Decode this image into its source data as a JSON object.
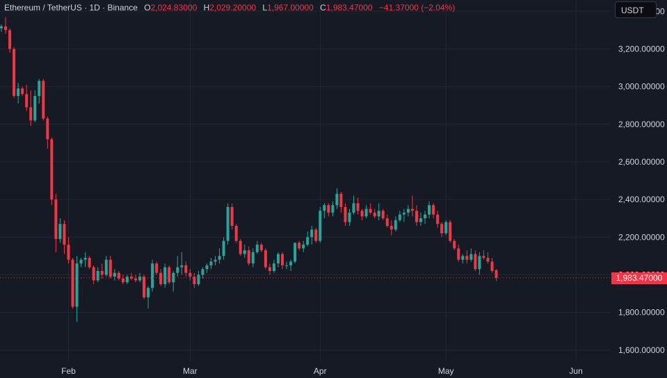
{
  "header": {
    "pair": "Ethereum / TetherUS · 1D · Binance",
    "open_label": "O",
    "open": "2,024.83000",
    "high_label": "H",
    "high": "2,029.20000",
    "low_label": "L",
    "low": "1,967.00000",
    "close_label": "C",
    "close": "1,983.47000",
    "change": "−41.37000 (−2.04%)"
  },
  "currency_button": "USDT",
  "last_price_label": "1,983.47000",
  "colors": {
    "up": "#26a69a",
    "down": "#f23645",
    "background": "#161a25",
    "grid": "#242732",
    "text": "#d1d4dc"
  },
  "chart_data": {
    "type": "candlestick",
    "y_axis": {
      "min": 1540,
      "max": 3460,
      "ticks": [
        1600,
        1800,
        2000,
        2200,
        2400,
        2600,
        2800,
        3000,
        3200,
        3400
      ],
      "tick_labels": [
        "1,600.00000",
        "1,800.00000",
        "2,000.00000",
        "2,200.00000",
        "2,400.00000",
        "2,600.00000",
        "2,800.00000",
        "3,000.00000",
        "3,200.00000",
        "3,400.00000"
      ]
    },
    "x_axis": {
      "labels": [
        {
          "label": "Feb",
          "index": 16
        },
        {
          "label": "Mar",
          "index": 45
        },
        {
          "label": "Apr",
          "index": 76
        },
        {
          "label": "May",
          "index": 106
        },
        {
          "label": "Jun",
          "index": 137
        }
      ]
    },
    "last_price": 1983.47,
    "candles": [
      [
        3310,
        3330,
        3290,
        3320
      ],
      [
        3320,
        3370,
        3280,
        3300
      ],
      [
        3300,
        3310,
        3180,
        3200
      ],
      [
        3200,
        3210,
        2940,
        2950
      ],
      [
        2950,
        3020,
        2910,
        2990
      ],
      [
        2990,
        3000,
        2950,
        2960
      ],
      [
        2960,
        3010,
        2870,
        2890
      ],
      [
        2890,
        2980,
        2790,
        2820
      ],
      [
        2820,
        2980,
        2810,
        2950
      ],
      [
        2950,
        3040,
        2910,
        3030
      ],
      [
        3030,
        3040,
        2820,
        2830
      ],
      [
        2830,
        2840,
        2670,
        2720
      ],
      [
        2720,
        2730,
        2370,
        2400
      ],
      [
        2400,
        2430,
        2120,
        2190
      ],
      [
        2190,
        2300,
        2170,
        2270
      ],
      [
        2270,
        2290,
        2110,
        2160
      ],
      [
        2160,
        2200,
        2060,
        2080
      ],
      [
        2080,
        2090,
        1820,
        1830
      ],
      [
        1830,
        2100,
        1750,
        2060
      ],
      [
        2060,
        2090,
        2040,
        2080
      ],
      [
        2080,
        2120,
        2040,
        2090
      ],
      [
        2090,
        2100,
        2030,
        2040
      ],
      [
        2040,
        2050,
        1950,
        1970
      ],
      [
        1970,
        2040,
        1960,
        2020
      ],
      [
        2020,
        2060,
        1980,
        2000
      ],
      [
        2000,
        2100,
        1990,
        2080
      ],
      [
        2080,
        2100,
        1980,
        1990
      ],
      [
        1990,
        2030,
        1970,
        2010
      ],
      [
        2010,
        2020,
        1970,
        1980
      ],
      [
        1980,
        2000,
        1950,
        1960
      ],
      [
        1960,
        2000,
        1950,
        1990
      ],
      [
        1990,
        2010,
        1970,
        1980
      ],
      [
        1980,
        2000,
        1960,
        1970
      ],
      [
        1970,
        2010,
        1960,
        1990
      ],
      [
        1990,
        2000,
        1870,
        1880
      ],
      [
        1880,
        1940,
        1820,
        1930
      ],
      [
        1930,
        2080,
        1910,
        2060
      ],
      [
        2060,
        2070,
        2000,
        2010
      ],
      [
        2010,
        2030,
        1940,
        1950
      ],
      [
        1950,
        2060,
        1930,
        2040
      ],
      [
        2040,
        2050,
        1950,
        1960
      ],
      [
        1960,
        2020,
        1910,
        2010
      ],
      [
        2010,
        2100,
        1990,
        2040
      ],
      [
        2040,
        2120,
        2000,
        2050
      ],
      [
        2050,
        2070,
        1990,
        2010
      ],
      [
        2010,
        2030,
        1970,
        1990
      ],
      [
        1990,
        2010,
        1930,
        1950
      ],
      [
        1950,
        2020,
        1940,
        2000
      ],
      [
        2000,
        2040,
        1980,
        2030
      ],
      [
        2030,
        2060,
        2010,
        2050
      ],
      [
        2050,
        2090,
        2030,
        2070
      ],
      [
        2070,
        2100,
        2050,
        2080
      ],
      [
        2080,
        2140,
        2060,
        2100
      ],
      [
        2100,
        2200,
        2080,
        2180
      ],
      [
        2180,
        2380,
        2160,
        2360
      ],
      [
        2360,
        2380,
        2240,
        2260
      ],
      [
        2260,
        2270,
        2170,
        2180
      ],
      [
        2180,
        2190,
        2100,
        2110
      ],
      [
        2110,
        2160,
        2090,
        2130
      ],
      [
        2130,
        2150,
        2050,
        2060
      ],
      [
        2060,
        2140,
        2040,
        2120
      ],
      [
        2120,
        2180,
        2110,
        2160
      ],
      [
        2160,
        2170,
        2120,
        2130
      ],
      [
        2130,
        2140,
        2030,
        2040
      ],
      [
        2040,
        2060,
        2000,
        2020
      ],
      [
        2020,
        2080,
        2010,
        2060
      ],
      [
        2060,
        2120,
        2040,
        2110
      ],
      [
        2110,
        2120,
        2030,
        2050
      ],
      [
        2050,
        2070,
        2030,
        2050
      ],
      [
        2050,
        2080,
        2020,
        2070
      ],
      [
        2070,
        2170,
        2060,
        2170
      ],
      [
        2170,
        2180,
        2130,
        2140
      ],
      [
        2140,
        2180,
        2120,
        2160
      ],
      [
        2160,
        2230,
        2150,
        2200
      ],
      [
        2200,
        2260,
        2160,
        2240
      ],
      [
        2240,
        2250,
        2170,
        2180
      ],
      [
        2180,
        2360,
        2170,
        2340
      ],
      [
        2340,
        2380,
        2300,
        2370
      ],
      [
        2370,
        2380,
        2310,
        2330
      ],
      [
        2330,
        2390,
        2310,
        2370
      ],
      [
        2370,
        2460,
        2350,
        2430
      ],
      [
        2430,
        2440,
        2330,
        2360
      ],
      [
        2360,
        2380,
        2260,
        2280
      ],
      [
        2280,
        2350,
        2260,
        2330
      ],
      [
        2330,
        2420,
        2320,
        2380
      ],
      [
        2380,
        2410,
        2320,
        2340
      ],
      [
        2340,
        2350,
        2290,
        2310
      ],
      [
        2310,
        2370,
        2300,
        2350
      ],
      [
        2350,
        2380,
        2320,
        2330
      ],
      [
        2330,
        2350,
        2300,
        2310
      ],
      [
        2310,
        2380,
        2290,
        2340
      ],
      [
        2340,
        2350,
        2290,
        2300
      ],
      [
        2300,
        2320,
        2250,
        2260
      ],
      [
        2260,
        2290,
        2210,
        2240
      ],
      [
        2240,
        2310,
        2230,
        2290
      ],
      [
        2290,
        2340,
        2280,
        2320
      ],
      [
        2320,
        2350,
        2280,
        2330
      ],
      [
        2330,
        2370,
        2310,
        2350
      ],
      [
        2350,
        2420,
        2310,
        2340
      ],
      [
        2340,
        2370,
        2260,
        2280
      ],
      [
        2280,
        2330,
        2260,
        2300
      ],
      [
        2300,
        2340,
        2270,
        2320
      ],
      [
        2320,
        2390,
        2300,
        2370
      ],
      [
        2370,
        2380,
        2300,
        2320
      ],
      [
        2320,
        2340,
        2250,
        2270
      ],
      [
        2270,
        2280,
        2200,
        2220
      ],
      [
        2220,
        2290,
        2210,
        2280
      ],
      [
        2280,
        2290,
        2170,
        2180
      ],
      [
        2180,
        2190,
        2130,
        2140
      ],
      [
        2140,
        2160,
        2070,
        2080
      ],
      [
        2080,
        2110,
        2060,
        2100
      ],
      [
        2100,
        2130,
        2060,
        2080
      ],
      [
        2080,
        2140,
        2070,
        2110
      ],
      [
        2110,
        2130,
        2020,
        2030
      ],
      [
        2030,
        2120,
        2000,
        2100
      ],
      [
        2100,
        2130,
        2080,
        2090
      ],
      [
        2090,
        2120,
        2060,
        2070
      ],
      [
        2070,
        2090,
        2010,
        2020
      ],
      [
        2024.83,
        2029.2,
        1967,
        1983.47
      ]
    ]
  }
}
